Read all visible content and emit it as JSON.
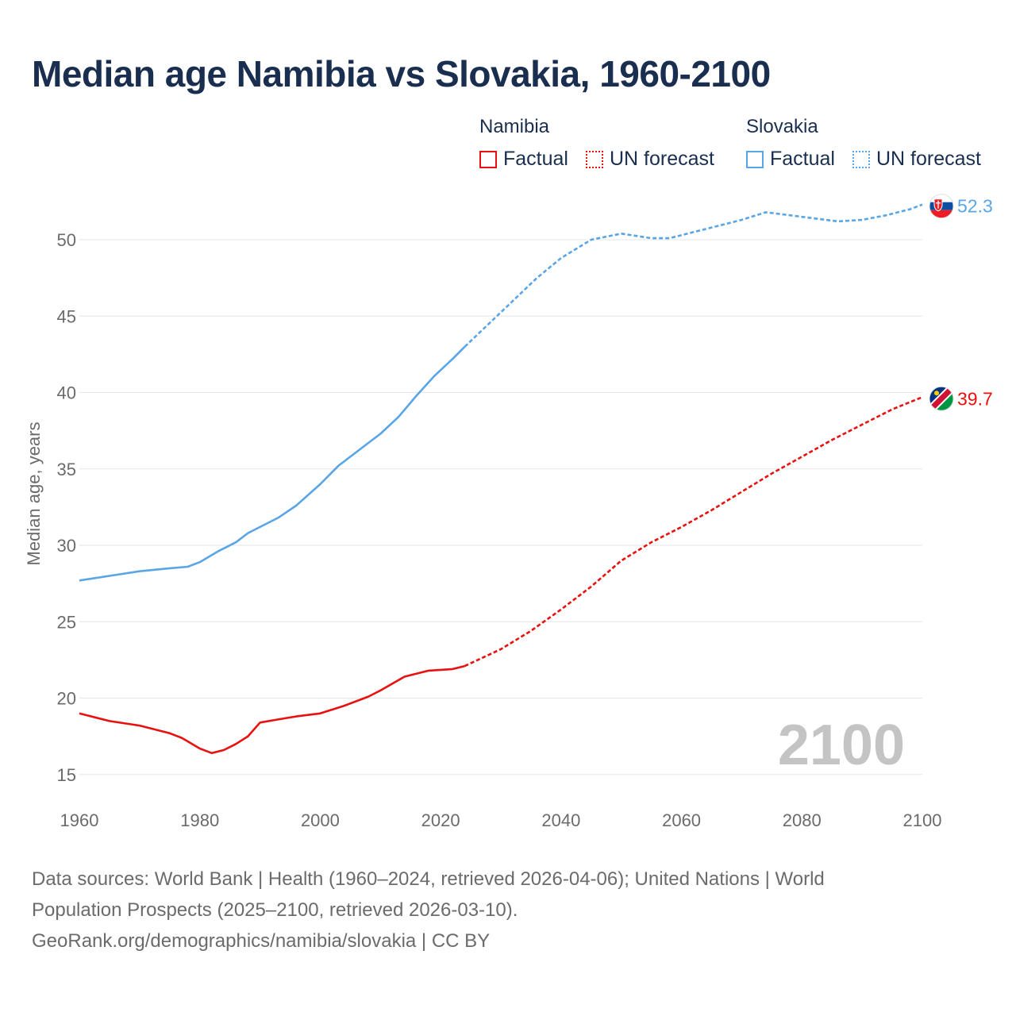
{
  "title": "Median age Namibia vs Slovakia, 1960-2100",
  "legend": {
    "namibia": {
      "label": "Namibia",
      "factual": "Factual",
      "forecast": "UN forecast"
    },
    "slovakia": {
      "label": "Slovakia",
      "factual": "Factual",
      "forecast": "UN forecast"
    }
  },
  "colors": {
    "namibia": "#e8110f",
    "slovakia": "#5aa5e6",
    "grid": "#e6e6e6"
  },
  "footer": {
    "line1": "Data sources: World Bank | Health (1960–2024, retrieved 2026-04-06); United Nations | World",
    "line2": "Population Prospects (2025–2100, retrieved 2026-03-10).",
    "line3": "GeoRank.org/demographics/namibia/slovakia | CC BY"
  },
  "chart_data": {
    "type": "line",
    "title": "Median age Namibia vs Slovakia, 1960-2100",
    "xlabel": "",
    "ylabel": "Median age, years",
    "xlim": [
      1960,
      2100
    ],
    "ylim": [
      14,
      54
    ],
    "xticks": [
      1960,
      1980,
      2000,
      2020,
      2040,
      2060,
      2080,
      2100
    ],
    "yticks": [
      15,
      20,
      25,
      30,
      35,
      40,
      45,
      50
    ],
    "forecast_start": 2024,
    "watermark_year": "2100",
    "series": [
      {
        "name": "Namibia",
        "end_label": "39.7",
        "points": [
          [
            1960,
            19.0
          ],
          [
            1965,
            18.5
          ],
          [
            1970,
            18.2
          ],
          [
            1975,
            17.7
          ],
          [
            1977,
            17.4
          ],
          [
            1980,
            16.7
          ],
          [
            1982,
            16.4
          ],
          [
            1984,
            16.6
          ],
          [
            1986,
            17.0
          ],
          [
            1988,
            17.5
          ],
          [
            1990,
            18.4
          ],
          [
            1993,
            18.6
          ],
          [
            1996,
            18.8
          ],
          [
            2000,
            19.0
          ],
          [
            2004,
            19.5
          ],
          [
            2008,
            20.1
          ],
          [
            2010,
            20.5
          ],
          [
            2014,
            21.4
          ],
          [
            2018,
            21.8
          ],
          [
            2022,
            21.9
          ],
          [
            2024,
            22.1
          ],
          [
            2030,
            23.2
          ],
          [
            2035,
            24.4
          ],
          [
            2040,
            25.8
          ],
          [
            2045,
            27.3
          ],
          [
            2050,
            29.0
          ],
          [
            2055,
            30.2
          ],
          [
            2060,
            31.2
          ],
          [
            2065,
            32.3
          ],
          [
            2070,
            33.5
          ],
          [
            2075,
            34.7
          ],
          [
            2080,
            35.8
          ],
          [
            2085,
            36.9
          ],
          [
            2090,
            37.9
          ],
          [
            2095,
            38.9
          ],
          [
            2100,
            39.7
          ]
        ]
      },
      {
        "name": "Slovakia",
        "end_label": "52.3",
        "points": [
          [
            1960,
            27.7
          ],
          [
            1965,
            28.0
          ],
          [
            1970,
            28.3
          ],
          [
            1975,
            28.5
          ],
          [
            1978,
            28.6
          ],
          [
            1980,
            28.9
          ],
          [
            1983,
            29.6
          ],
          [
            1986,
            30.2
          ],
          [
            1988,
            30.8
          ],
          [
            1990,
            31.2
          ],
          [
            1993,
            31.8
          ],
          [
            1996,
            32.6
          ],
          [
            2000,
            34.0
          ],
          [
            2003,
            35.2
          ],
          [
            2006,
            36.1
          ],
          [
            2008,
            36.7
          ],
          [
            2010,
            37.3
          ],
          [
            2013,
            38.4
          ],
          [
            2016,
            39.8
          ],
          [
            2019,
            41.1
          ],
          [
            2022,
            42.2
          ],
          [
            2024,
            43.0
          ],
          [
            2028,
            44.5
          ],
          [
            2032,
            46.0
          ],
          [
            2036,
            47.5
          ],
          [
            2040,
            48.8
          ],
          [
            2045,
            50.0
          ],
          [
            2050,
            50.4
          ],
          [
            2055,
            50.1
          ],
          [
            2058,
            50.1
          ],
          [
            2062,
            50.5
          ],
          [
            2066,
            50.9
          ],
          [
            2070,
            51.3
          ],
          [
            2074,
            51.8
          ],
          [
            2078,
            51.6
          ],
          [
            2082,
            51.4
          ],
          [
            2086,
            51.2
          ],
          [
            2090,
            51.3
          ],
          [
            2094,
            51.6
          ],
          [
            2098,
            52.0
          ],
          [
            2100,
            52.3
          ]
        ]
      }
    ]
  }
}
